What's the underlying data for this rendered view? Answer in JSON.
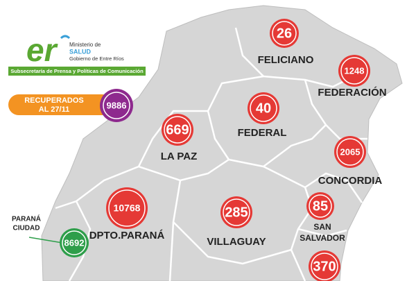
{
  "header": {
    "logo": "er",
    "ministry": "Ministerio de",
    "ministry_name": "SALUD",
    "government": "Gobierno de Entre Ríos",
    "banner": "Subsecretaría de Prensa y Políticas de Comunicación"
  },
  "recovered": {
    "label_lines": [
      "RECUPERADOS",
      "AL 27/11"
    ],
    "value": "9886"
  },
  "regions": [
    {
      "name_lines": [
        "FELICIANO"
      ],
      "value": "26"
    },
    {
      "name_lines": [
        "FEDERACIÓN"
      ],
      "value": "1248"
    },
    {
      "name_lines": [
        "FEDERAL"
      ],
      "value": "40"
    },
    {
      "name_lines": [
        "LA PAZ"
      ],
      "value": "669"
    },
    {
      "name_lines": [
        "CONCORDIA"
      ],
      "value": "2065"
    },
    {
      "name_lines": [
        "DPTO.PARANÁ"
      ],
      "value": "10768"
    },
    {
      "name_lines": [
        "VILLAGUAY"
      ],
      "value": "285"
    },
    {
      "name_lines": [
        "SAN",
        "SALVADOR"
      ],
      "value": "85"
    },
    {
      "name_lines": [
        "PARANÁ",
        "CIUDAD"
      ],
      "value": "8692"
    },
    {
      "name_lines": [],
      "value": "370"
    }
  ]
}
